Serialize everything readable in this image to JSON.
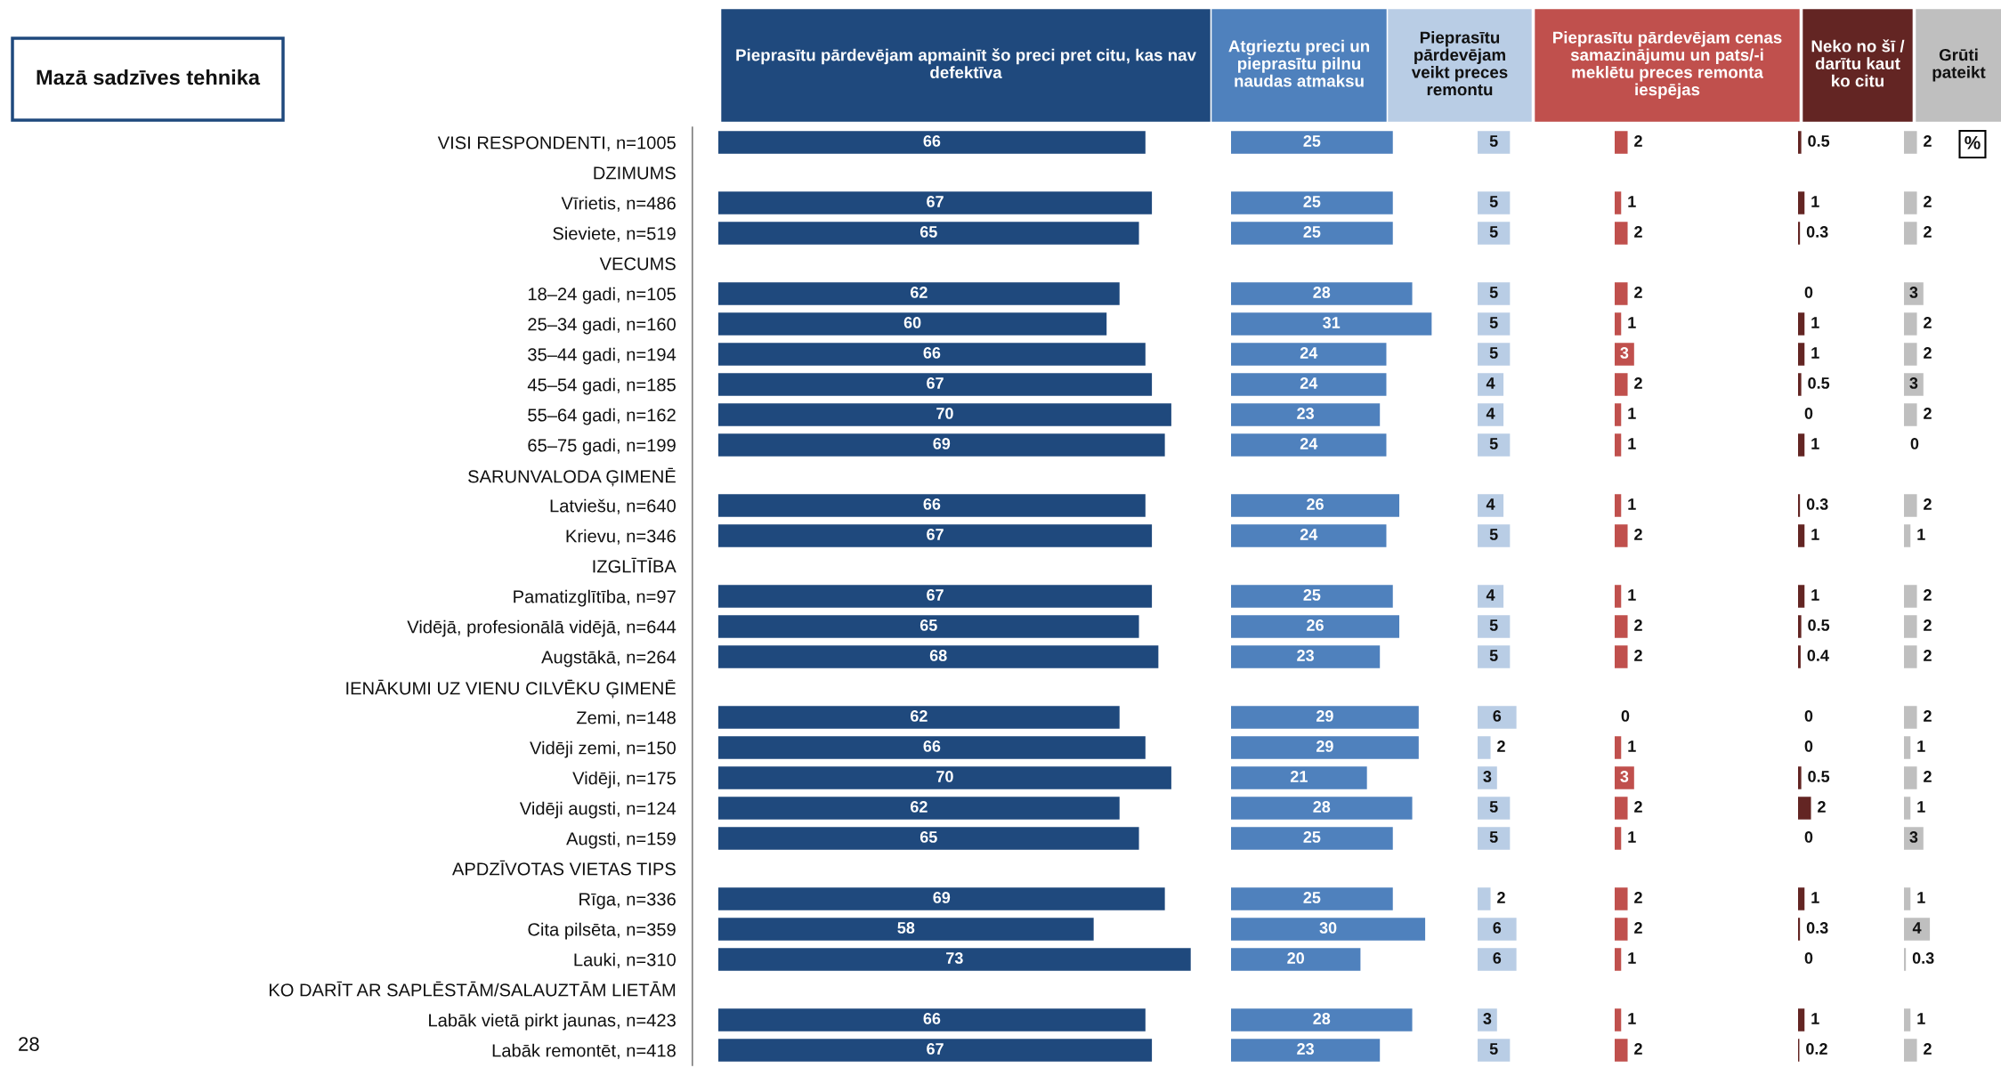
{
  "chart_data": [
    {
      "type": "bar",
      "orientation": "horizontal",
      "title": "Pieprasītu pārdevējam apmainīt šo preci pret citu, kas nav defektīva",
      "color": "#1f497d",
      "data_labels": true,
      "annotations": [
        "Mazā sadzīves tehnika",
        "28"
      ],
      "categories": [
        "VISI RESPONDENTI, n=1005",
        "DZIMUMS",
        "Vīrietis, n=486",
        "Sieviete, n=519",
        "VECUMS",
        "18–24 gadi, n=105",
        "25–34 gadi, n=160",
        "35–44 gadi, n=194",
        "45–54 gadi, n=185",
        "55–64 gadi, n=162",
        "65–75 gadi, n=199",
        "SARUNVALODA ĢIMENĒ",
        "Latviešu, n=640",
        "Krievu, n=346",
        "IZGLĪTĪBA",
        "Pamatizglītība, n=97",
        "Vidējā, profesionālā vidējā, n=644",
        "Augstākā, n=264",
        "IENĀKUMI UZ VIENU CILVĒKU ĢIMENĒ",
        "Zemi, n=148",
        "Vidēji zemi, n=150",
        "Vidēji, n=175",
        "Vidēji augsti, n=124",
        "Augsti, n=159",
        "APDZĪVOTAS VIETAS TIPS",
        "Rīga, n=336",
        "Cita pilsēta, n=359",
        "Lauki, n=310",
        "KO DARĪT AR SAPLĒSTĀM/SALAUZTĀM LIETĀM",
        "Labāk vietā pirkt jaunas, n=423",
        "Labāk remontēt, n=418"
      ],
      "values": [
        66,
        null,
        67,
        65,
        null,
        62,
        60,
        66,
        67,
        70,
        69,
        null,
        66,
        67,
        null,
        67,
        65,
        68,
        null,
        62,
        66,
        70,
        62,
        65,
        null,
        69,
        58,
        73,
        null,
        66,
        67
      ]
    },
    {
      "type": "bar",
      "orientation": "horizontal",
      "title": "Atgrieztu preci un pieprasītu pilnu naudas atmaksu",
      "color": "#4f81bd",
      "data_labels": true,
      "tick_labels": false,
      "values": [
        25,
        null,
        25,
        25,
        null,
        28,
        31,
        24,
        24,
        23,
        24,
        null,
        26,
        24,
        null,
        25,
        26,
        23,
        null,
        29,
        29,
        21,
        28,
        25,
        null,
        25,
        30,
        20,
        null,
        28,
        23
      ]
    },
    {
      "type": "bar",
      "orientation": "horizontal",
      "title": "Pieprasītu pārdevējam veikt preces remontu",
      "color": "#b9cde5",
      "data_labels": true,
      "tick_labels": false,
      "values": [
        5,
        null,
        5,
        5,
        null,
        5,
        5,
        5,
        4,
        4,
        5,
        null,
        4,
        5,
        null,
        4,
        5,
        5,
        null,
        6,
        2,
        3,
        5,
        5,
        null,
        2,
        6,
        6,
        null,
        3,
        5
      ]
    },
    {
      "type": "bar",
      "orientation": "horizontal",
      "title": "Pieprasītu pārdevējam cenas samazinājumu un pats/-i meklētu preces remonta iespējas",
      "color": "#c0504d",
      "data_labels": true,
      "tick_labels": false,
      "values": [
        2,
        null,
        1,
        2,
        null,
        2,
        1,
        3,
        2,
        1,
        1,
        null,
        1,
        2,
        null,
        1,
        2,
        2,
        null,
        0,
        1,
        3,
        2,
        1,
        null,
        2,
        2,
        1,
        null,
        1,
        2
      ]
    },
    {
      "type": "bar",
      "orientation": "horizontal",
      "title": "Neko no šī / darītu kaut ko citu",
      "color": "#632523",
      "data_labels": true,
      "tick_labels": false,
      "values": [
        0.5,
        null,
        1,
        0.3,
        null,
        0,
        1,
        1,
        0.5,
        0,
        1,
        null,
        0.3,
        1,
        null,
        1,
        0.5,
        0.4,
        null,
        0,
        0,
        0.5,
        2,
        0,
        null,
        1,
        0.3,
        0,
        null,
        1,
        0.2
      ]
    },
    {
      "type": "bar",
      "orientation": "horizontal",
      "title": "Grūti pateikt",
      "color": "#bfbfbf",
      "data_labels": true,
      "tick_labels": false,
      "annotations": [
        "%"
      ],
      "values": [
        2,
        null,
        2,
        2,
        null,
        3,
        2,
        2,
        3,
        2,
        0,
        null,
        2,
        1,
        null,
        2,
        2,
        2,
        null,
        2,
        1,
        2,
        1,
        3,
        null,
        1,
        4,
        0.3,
        null,
        1,
        2
      ]
    }
  ]
}
